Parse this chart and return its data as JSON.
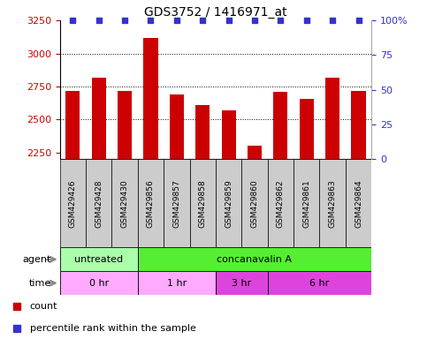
{
  "title": "GDS3752 / 1416971_at",
  "samples": [
    "GSM429426",
    "GSM429428",
    "GSM429430",
    "GSM429856",
    "GSM429857",
    "GSM429858",
    "GSM429859",
    "GSM429860",
    "GSM429862",
    "GSM429861",
    "GSM429863",
    "GSM429864"
  ],
  "counts": [
    2720,
    2820,
    2720,
    3120,
    2690,
    2610,
    2570,
    2300,
    2710,
    2660,
    2820,
    2720
  ],
  "ylim_left": [
    2200,
    3250
  ],
  "ylim_right": [
    0,
    100
  ],
  "yticks_left": [
    2250,
    2500,
    2750,
    3000,
    3250
  ],
  "yticks_right": [
    0,
    25,
    50,
    75,
    100
  ],
  "bar_color": "#cc0000",
  "dot_color": "#3333cc",
  "bar_width": 0.55,
  "agent_groups": [
    {
      "label": "untreated",
      "start": 0,
      "end": 3,
      "color": "#aaffaa"
    },
    {
      "label": "concanavalin A",
      "start": 3,
      "end": 12,
      "color": "#55ee33"
    }
  ],
  "time_groups": [
    {
      "label": "0 hr",
      "start": 0,
      "end": 3,
      "color": "#ffaaff"
    },
    {
      "label": "1 hr",
      "start": 3,
      "end": 6,
      "color": "#ffaaff"
    },
    {
      "label": "3 hr",
      "start": 6,
      "end": 8,
      "color": "#dd44dd"
    },
    {
      "label": "6 hr",
      "start": 8,
      "end": 12,
      "color": "#dd44dd"
    }
  ],
  "label_bg": "#cccccc",
  "bg_color": "#ffffff",
  "left_tick_color": "#cc0000",
  "right_tick_color": "#3333cc"
}
